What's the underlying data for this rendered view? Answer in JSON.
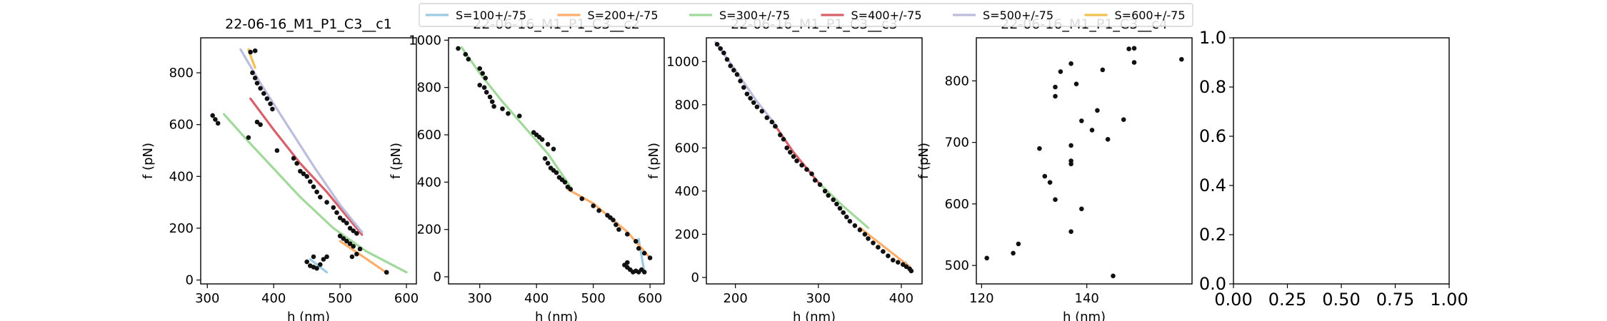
{
  "legend": [
    {
      "name": "S=100+/-75",
      "color": "#9ecae1"
    },
    {
      "name": "S=200+/-75",
      "color": "#fdae6b"
    },
    {
      "name": "S=300+/-75",
      "color": "#a1d99b"
    },
    {
      "name": "S=400+/-75",
      "color": "#d6616b"
    },
    {
      "name": "S=500+/-75",
      "color": "#bcbddc"
    },
    {
      "name": "S=600+/-75",
      "color": "#f0c050"
    }
  ],
  "chart_data": [
    {
      "type": "scatter",
      "title": "22-06-16_M1_P1_C3__c1",
      "xlabel": "h (nm)",
      "ylabel": "f (pN)",
      "xlim": [
        290,
        615
      ],
      "ylim": [
        -15,
        935
      ],
      "xticks": [
        300,
        400,
        500,
        600
      ],
      "yticks": [
        0,
        200,
        400,
        600,
        800
      ],
      "points": [
        [
          308,
          635
        ],
        [
          312,
          620
        ],
        [
          316,
          605
        ],
        [
          365,
          880
        ],
        [
          372,
          885
        ],
        [
          368,
          800
        ],
        [
          372,
          780
        ],
        [
          375,
          760
        ],
        [
          380,
          740
        ],
        [
          385,
          720
        ],
        [
          390,
          700
        ],
        [
          395,
          680
        ],
        [
          398,
          660
        ],
        [
          362,
          550
        ],
        [
          375,
          610
        ],
        [
          380,
          600
        ],
        [
          405,
          500
        ],
        [
          430,
          470
        ],
        [
          435,
          450
        ],
        [
          440,
          420
        ],
        [
          445,
          410
        ],
        [
          450,
          400
        ],
        [
          455,
          380
        ],
        [
          460,
          360
        ],
        [
          465,
          340
        ],
        [
          470,
          320
        ],
        [
          480,
          300
        ],
        [
          490,
          280
        ],
        [
          495,
          260
        ],
        [
          500,
          240
        ],
        [
          505,
          230
        ],
        [
          510,
          220
        ],
        [
          515,
          200
        ],
        [
          520,
          190
        ],
        [
          525,
          180
        ],
        [
          500,
          170
        ],
        [
          505,
          160
        ],
        [
          510,
          150
        ],
        [
          515,
          140
        ],
        [
          520,
          130
        ],
        [
          530,
          120
        ],
        [
          525,
          100
        ],
        [
          518,
          90
        ],
        [
          570,
          30
        ],
        [
          455,
          55
        ],
        [
          460,
          50
        ],
        [
          465,
          45
        ],
        [
          470,
          60
        ],
        [
          475,
          80
        ],
        [
          480,
          90
        ],
        [
          460,
          90
        ],
        [
          450,
          70
        ]
      ],
      "series": [
        {
          "name": "S=100+/-75",
          "x": [
            455,
            480
          ],
          "y": [
            80,
            30
          ]
        },
        {
          "name": "S=200+/-75",
          "x": [
            500,
            535,
            572
          ],
          "y": [
            150,
            90,
            25
          ]
        },
        {
          "name": "S=300+/-75",
          "x": [
            325,
            360,
            400,
            440,
            490,
            540,
            600
          ],
          "y": [
            640,
            540,
            430,
            320,
            200,
            110,
            30
          ]
        },
        {
          "name": "S=400+/-75",
          "x": [
            365,
            400,
            440,
            480,
            533
          ],
          "y": [
            700,
            580,
            450,
            340,
            175
          ]
        },
        {
          "name": "S=500+/-75",
          "x": [
            350,
            380,
            420,
            460,
            500,
            533
          ],
          "y": [
            890,
            760,
            600,
            440,
            290,
            185
          ]
        },
        {
          "name": "S=600+/-75",
          "x": [
            362,
            366,
            372
          ],
          "y": [
            890,
            860,
            820
          ]
        }
      ]
    },
    {
      "type": "scatter",
      "title": "22-06-16_M1_P1_C3__c2",
      "xlabel": "h (nm)",
      "ylabel": "f (pN)",
      "xlim": [
        245,
        625
      ],
      "ylim": [
        -30,
        1010
      ],
      "xticks": [
        300,
        400,
        500,
        600
      ],
      "yticks": [
        0,
        200,
        400,
        600,
        800,
        1000
      ],
      "points": [
        [
          262,
          965
        ],
        [
          275,
          940
        ],
        [
          280,
          920
        ],
        [
          300,
          880
        ],
        [
          305,
          860
        ],
        [
          310,
          840
        ],
        [
          300,
          810
        ],
        [
          308,
          800
        ],
        [
          312,
          780
        ],
        [
          318,
          760
        ],
        [
          322,
          740
        ],
        [
          325,
          720
        ],
        [
          340,
          710
        ],
        [
          350,
          690
        ],
        [
          370,
          680
        ],
        [
          395,
          610
        ],
        [
          400,
          600
        ],
        [
          405,
          590
        ],
        [
          410,
          580
        ],
        [
          420,
          560
        ],
        [
          430,
          540
        ],
        [
          415,
          500
        ],
        [
          420,
          480
        ],
        [
          425,
          460
        ],
        [
          430,
          450
        ],
        [
          435,
          440
        ],
        [
          440,
          420
        ],
        [
          445,
          410
        ],
        [
          450,
          400
        ],
        [
          455,
          380
        ],
        [
          460,
          370
        ],
        [
          480,
          330
        ],
        [
          500,
          300
        ],
        [
          510,
          280
        ],
        [
          525,
          260
        ],
        [
          530,
          250
        ],
        [
          535,
          240
        ],
        [
          540,
          220
        ],
        [
          545,
          200
        ],
        [
          560,
          180
        ],
        [
          575,
          150
        ],
        [
          580,
          120
        ],
        [
          590,
          100
        ],
        [
          600,
          80
        ],
        [
          555,
          50
        ],
        [
          560,
          40
        ],
        [
          565,
          30
        ],
        [
          570,
          20
        ],
        [
          575,
          25
        ],
        [
          580,
          20
        ],
        [
          585,
          30
        ],
        [
          590,
          20
        ],
        [
          560,
          60
        ]
      ],
      "series": [
        {
          "name": "S=100+/-75",
          "x": [
            580,
            590
          ],
          "y": [
            160,
            20
          ]
        },
        {
          "name": "S=200+/-75",
          "x": [
            455,
            500,
            560,
            600
          ],
          "y": [
            370,
            310,
            190,
            80
          ]
        },
        {
          "name": "S=300+/-75",
          "x": [
            268,
            300,
            340,
            380,
            420,
            460
          ],
          "y": [
            970,
            860,
            740,
            630,
            520,
            380
          ]
        }
      ]
    },
    {
      "type": "scatter",
      "title": "22-06-16_M1_P1_C3__c3",
      "xlabel": "h (nm)",
      "ylabel": "f (pN)",
      "xlim": [
        165,
        425
      ],
      "ylim": [
        -30,
        1110
      ],
      "xticks": [
        200,
        300,
        400
      ],
      "yticks": [
        0,
        200,
        400,
        600,
        800,
        1000
      ],
      "points": [
        [
          178,
          1080
        ],
        [
          182,
          1060
        ],
        [
          186,
          1040
        ],
        [
          190,
          1010
        ],
        [
          194,
          980
        ],
        [
          198,
          960
        ],
        [
          202,
          940
        ],
        [
          206,
          910
        ],
        [
          210,
          880
        ],
        [
          214,
          850
        ],
        [
          218,
          830
        ],
        [
          222,
          810
        ],
        [
          226,
          790
        ],
        [
          232,
          770
        ],
        [
          238,
          740
        ],
        [
          244,
          720
        ],
        [
          248,
          700
        ],
        [
          254,
          660
        ],
        [
          258,
          640
        ],
        [
          262,
          600
        ],
        [
          266,
          580
        ],
        [
          270,
          560
        ],
        [
          274,
          540
        ],
        [
          280,
          520
        ],
        [
          286,
          500
        ],
        [
          292,
          480
        ],
        [
          296,
          450
        ],
        [
          302,
          430
        ],
        [
          308,
          400
        ],
        [
          312,
          380
        ],
        [
          318,
          360
        ],
        [
          322,
          340
        ],
        [
          326,
          320
        ],
        [
          330,
          300
        ],
        [
          334,
          280
        ],
        [
          338,
          260
        ],
        [
          344,
          240
        ],
        [
          350,
          220
        ],
        [
          356,
          200
        ],
        [
          360,
          180
        ],
        [
          366,
          160
        ],
        [
          372,
          140
        ],
        [
          378,
          120
        ],
        [
          384,
          100
        ],
        [
          390,
          80
        ],
        [
          396,
          70
        ],
        [
          402,
          60
        ],
        [
          406,
          50
        ],
        [
          410,
          40
        ],
        [
          412,
          30
        ]
      ],
      "series": [
        {
          "name": "S=100+/-75",
          "x": [
            405,
            412
          ],
          "y": [
            70,
            30
          ]
        },
        {
          "name": "S=200+/-75",
          "x": [
            350,
            380,
            410
          ],
          "y": [
            230,
            140,
            50
          ]
        },
        {
          "name": "S=300+/-75",
          "x": [
            300,
            330,
            360
          ],
          "y": [
            440,
            330,
            230
          ]
        },
        {
          "name": "S=400+/-75",
          "x": [
            245,
            270,
            300
          ],
          "y": [
            720,
            580,
            440
          ]
        },
        {
          "name": "S=500+/-75",
          "x": [
            176,
            200,
            225,
            250
          ],
          "y": [
            1090,
            960,
            820,
            700
          ]
        }
      ]
    },
    {
      "type": "scatter",
      "title": "22-06-16_M1_P1_C3__c4",
      "xlabel": "h (nm)",
      "ylabel": "f (pN)",
      "xlim": [
        119,
        160
      ],
      "ylim": [
        470,
        870
      ],
      "xticks": [
        120,
        140
      ],
      "yticks": [
        500,
        600,
        700,
        800
      ],
      "points": [
        [
          121,
          512
        ],
        [
          126,
          520
        ],
        [
          127,
          535
        ],
        [
          131,
          690
        ],
        [
          132,
          645
        ],
        [
          133,
          635
        ],
        [
          134,
          790
        ],
        [
          134,
          775
        ],
        [
          135,
          815
        ],
        [
          134,
          607
        ],
        [
          137,
          555
        ],
        [
          137,
          665
        ],
        [
          137,
          695
        ],
        [
          137,
          670
        ],
        [
          137,
          828
        ],
        [
          138,
          795
        ],
        [
          139,
          735
        ],
        [
          139,
          592
        ],
        [
          141,
          720
        ],
        [
          142,
          752
        ],
        [
          143,
          818
        ],
        [
          144,
          705
        ],
        [
          145,
          483
        ],
        [
          147,
          737
        ],
        [
          148,
          852
        ],
        [
          149,
          853
        ],
        [
          149,
          830
        ],
        [
          158,
          835
        ]
      ],
      "series": []
    },
    {
      "type": "scatter",
      "title": "",
      "xlabel": "",
      "ylabel": "",
      "xlim": [
        0,
        1
      ],
      "ylim": [
        0,
        1
      ],
      "xticks": [
        0,
        0.25,
        0.5,
        0.75,
        1
      ],
      "xticklabels": [
        "0.00",
        "0.25",
        "0.50",
        "0.75",
        "1.00"
      ],
      "yticks": [
        0,
        0.2,
        0.4,
        0.6,
        0.8,
        1
      ],
      "yticklabels": [
        "0.0",
        "0.2",
        "0.4",
        "0.6",
        "0.8",
        "1.0"
      ],
      "points": [],
      "series": []
    }
  ]
}
